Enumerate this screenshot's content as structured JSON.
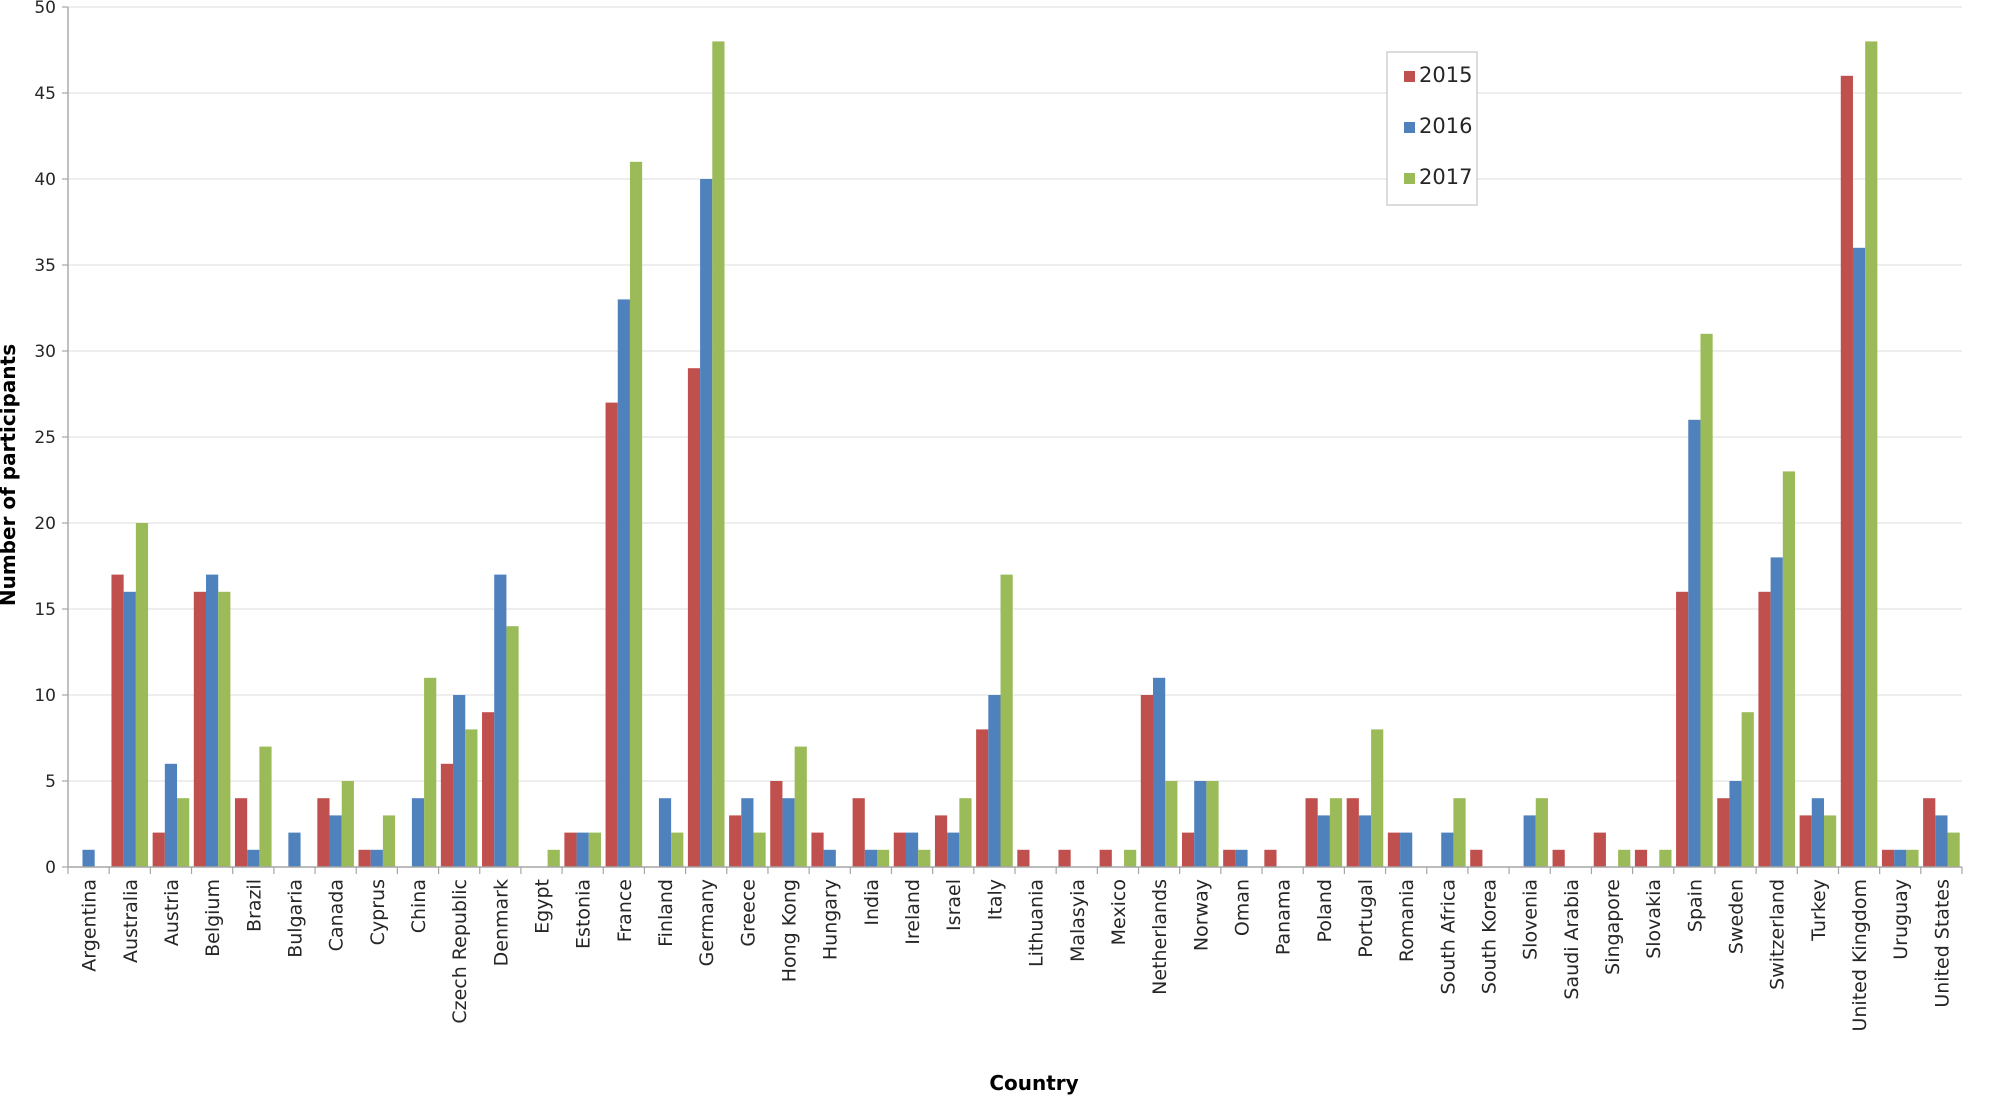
{
  "chart_data": {
    "type": "bar",
    "title": "",
    "xlabel": "Country",
    "ylabel": "Number of participants",
    "ylim": [
      0,
      50
    ],
    "yticks": [
      0,
      5,
      10,
      15,
      20,
      25,
      30,
      35,
      40,
      45,
      50
    ],
    "grid": true,
    "legend_position": "top-right",
    "categories": [
      "Argentina",
      "Australia",
      "Austria",
      "Belgium",
      "Brazil",
      "Bulgaria",
      "Canada",
      "Cyprus",
      "China",
      "Czech Republic",
      "Denmark",
      "Egypt",
      "Estonia",
      "France",
      "Finland",
      "Germany",
      "Greece",
      "Hong Kong",
      "Hungary",
      "India",
      "Ireland",
      "Israel",
      "Italy",
      "Lithuania",
      "Malasyia",
      "Mexico",
      "Netherlands",
      "Norway",
      "Oman",
      "Panama",
      "Poland",
      "Portugal",
      "Romania",
      "South Africa",
      "South Korea",
      "Slovenia",
      "Saudi Arabia",
      "Singapore",
      "Slovakia",
      "Spain",
      "Sweden",
      "Switzerland",
      "Turkey",
      "United Kingdom",
      "Uruguay",
      "United States"
    ],
    "series": [
      {
        "name": "2015",
        "color": "#c0504d",
        "values": [
          0,
          17,
          2,
          16,
          4,
          0,
          4,
          1,
          0,
          6,
          9,
          0,
          2,
          27,
          0,
          29,
          3,
          5,
          2,
          4,
          2,
          3,
          8,
          1,
          1,
          1,
          10,
          2,
          1,
          1,
          4,
          4,
          2,
          0,
          1,
          0,
          1,
          2,
          1,
          16,
          4,
          16,
          3,
          46,
          1,
          4
        ]
      },
      {
        "name": "2016",
        "color": "#4f81bd",
        "values": [
          1,
          16,
          6,
          17,
          1,
          2,
          3,
          1,
          4,
          10,
          17,
          0,
          2,
          33,
          4,
          40,
          4,
          4,
          1,
          1,
          2,
          2,
          10,
          0,
          0,
          0,
          11,
          5,
          1,
          0,
          3,
          3,
          2,
          2,
          0,
          3,
          0,
          0,
          0,
          26,
          5,
          18,
          4,
          36,
          1,
          3
        ]
      },
      {
        "name": "2017",
        "color": "#9bbb59",
        "values": [
          0,
          20,
          4,
          16,
          7,
          0,
          5,
          3,
          11,
          8,
          14,
          1,
          2,
          41,
          2,
          48,
          2,
          7,
          0,
          1,
          1,
          4,
          17,
          0,
          0,
          1,
          5,
          5,
          0,
          0,
          4,
          8,
          0,
          4,
          0,
          4,
          0,
          1,
          1,
          31,
          9,
          23,
          3,
          48,
          1,
          2
        ]
      }
    ]
  }
}
